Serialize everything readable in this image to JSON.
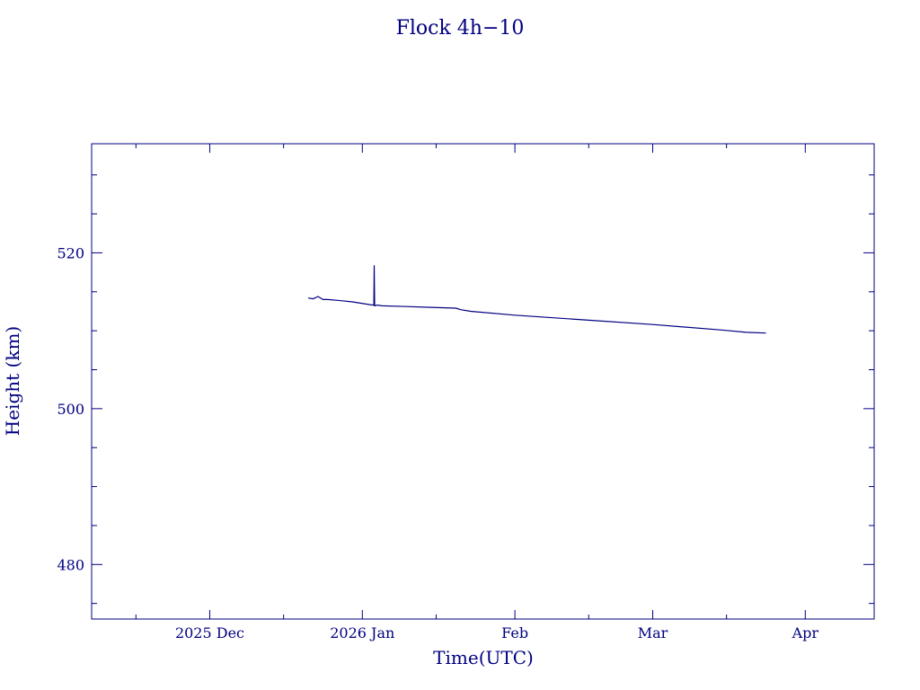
{
  "colors": {
    "background": "#ffffff",
    "ink": "#000080"
  },
  "chart_data": {
    "type": "line",
    "title": "Flock 4h−10",
    "xlabel": "Time(UTC)",
    "ylabel": "Height (km)",
    "xlim": [
      "2025-11-07",
      "2026-04-15"
    ],
    "ylim": [
      473,
      534
    ],
    "x_ticks": [
      {
        "date": "2025-12-01",
        "label": "2025 Dec"
      },
      {
        "date": "2026-01-01",
        "label": "2026 Jan"
      },
      {
        "date": "2026-02-01",
        "label": "Feb"
      },
      {
        "date": "2026-03-01",
        "label": "Mar"
      },
      {
        "date": "2026-04-01",
        "label": "Apr"
      }
    ],
    "y_ticks": [
      480,
      500,
      520
    ],
    "grid": false,
    "legend": "none",
    "series": [
      {
        "x": [
          "2025-12-21",
          "2025-12-22",
          "2025-12-23",
          "2025-12-24",
          "2025-12-25",
          "2025-12-27",
          "2025-12-30",
          "2026-01-02",
          "2026-01-03",
          "2026-01-03 08:00",
          "2026-01-03 10:00",
          "2026-01-03 12:00",
          "2026-01-03 14:00",
          "2026-01-04",
          "2026-01-05",
          "2026-01-10",
          "2026-01-15",
          "2026-01-20",
          "2026-01-21",
          "2026-01-23",
          "2026-02-01",
          "2026-02-15",
          "2026-03-01",
          "2026-03-15",
          "2026-03-20",
          "2026-03-24"
        ],
        "y": [
          514.2,
          514.1,
          514.4,
          514.0,
          514.0,
          513.9,
          513.7,
          513.4,
          513.3,
          513.3,
          518.4,
          513.2,
          513.2,
          513.3,
          513.2,
          513.1,
          513.0,
          512.9,
          512.7,
          512.5,
          512.0,
          511.4,
          510.8,
          510.1,
          509.8,
          509.7
        ]
      }
    ]
  }
}
